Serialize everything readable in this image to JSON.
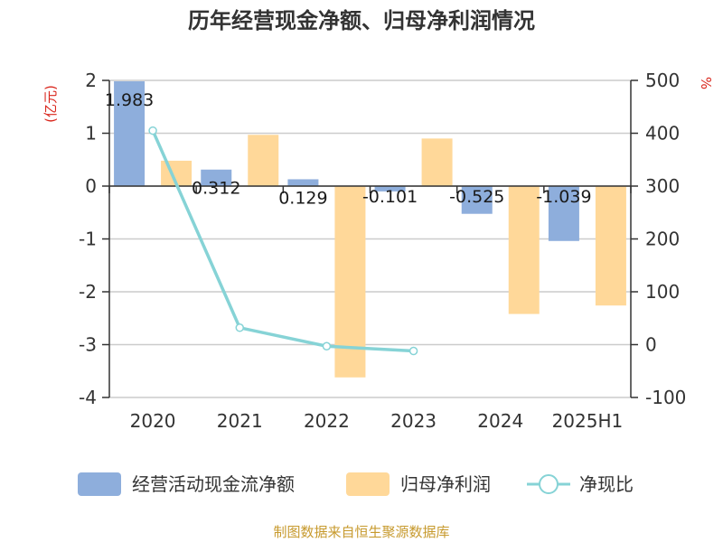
{
  "chart_data": {
    "type": "bar",
    "title": "历年经营现金净额、归母净利润情况",
    "categories": [
      "2020",
      "2021",
      "2022",
      "2023",
      "2024",
      "2025H1"
    ],
    "series": [
      {
        "name": "经营活动现金流净额",
        "type": "bar",
        "axis": "left",
        "color": "#8eaedc",
        "values": [
          1.983,
          0.312,
          0.129,
          -0.101,
          -0.525,
          -1.039
        ],
        "labels": [
          "1.983",
          "0.312",
          "0.129",
          "-0.101",
          "-0.525",
          "-1.039"
        ]
      },
      {
        "name": "归母净利润",
        "type": "bar",
        "axis": "left",
        "color": "#ffd899",
        "values": [
          0.48,
          0.97,
          -3.62,
          0.9,
          -2.42,
          -2.26
        ]
      },
      {
        "name": "净现比",
        "type": "line",
        "axis": "right",
        "color": "#86d3d6",
        "values": [
          405,
          32,
          -3,
          -12,
          null,
          null
        ]
      }
    ],
    "left_axis": {
      "unit": "(亿元)",
      "min": -4,
      "max": 2,
      "ticks": [
        "2",
        "1",
        "0",
        "-1",
        "-2",
        "-3",
        "-4"
      ]
    },
    "right_axis": {
      "unit": "%",
      "min": -100,
      "max": 500,
      "ticks": [
        "500",
        "400",
        "300",
        "200",
        "100",
        "0",
        "-100"
      ]
    },
    "grid": true,
    "legend_position": "bottom"
  },
  "source": "制图数据来自恒生聚源数据库"
}
